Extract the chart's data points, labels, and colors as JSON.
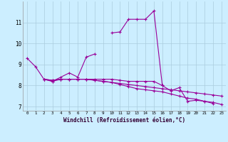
{
  "title": "",
  "xlabel": "Windchill (Refroidissement éolien,°C)",
  "ylabel": "",
  "bg_color": "#cceeff",
  "grid_color": "#aaccdd",
  "line_color": "#990099",
  "xlim": [
    -0.5,
    23.5
  ],
  "ylim": [
    6.8,
    12.0
  ],
  "xticks": [
    0,
    1,
    2,
    3,
    4,
    5,
    6,
    7,
    8,
    9,
    10,
    11,
    12,
    13,
    14,
    15,
    16,
    17,
    18,
    19,
    20,
    21,
    22,
    23
  ],
  "yticks": [
    7,
    8,
    9,
    10,
    11
  ],
  "series": [
    [
      9.3,
      8.9,
      8.3,
      8.2,
      8.4,
      8.6,
      8.4,
      9.35,
      9.5,
      null,
      10.5,
      10.55,
      11.15,
      11.15,
      11.15,
      11.55,
      8.0,
      null,
      null,
      null,
      null,
      null,
      null,
      null
    ],
    [
      null,
      null,
      8.3,
      8.2,
      8.3,
      8.3,
      8.3,
      8.3,
      8.3,
      8.3,
      8.3,
      8.25,
      8.2,
      8.2,
      8.2,
      8.2,
      8.0,
      7.75,
      7.9,
      7.25,
      7.3,
      7.25,
      7.15,
      null
    ],
    [
      null,
      null,
      8.3,
      8.25,
      8.3,
      8.3,
      8.3,
      8.3,
      8.25,
      8.2,
      8.15,
      8.1,
      8.05,
      8.0,
      7.95,
      7.9,
      7.85,
      7.8,
      7.75,
      7.7,
      7.65,
      7.6,
      7.55,
      7.5
    ],
    [
      null,
      null,
      8.3,
      8.25,
      8.3,
      8.3,
      8.3,
      8.3,
      8.25,
      8.2,
      8.15,
      8.05,
      7.95,
      7.85,
      7.8,
      7.75,
      7.7,
      7.6,
      7.5,
      7.4,
      7.35,
      7.25,
      7.2,
      7.1
    ]
  ]
}
